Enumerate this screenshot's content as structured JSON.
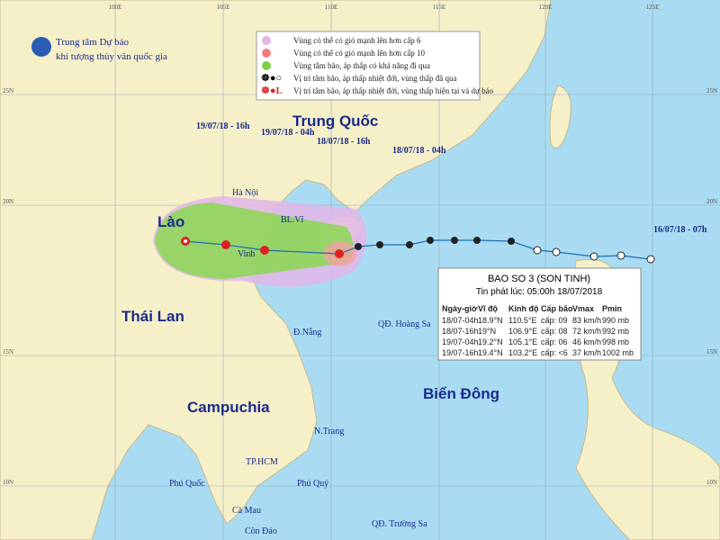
{
  "header": {
    "agency": [
      "Trung tâm Dự báo",
      "khí tượng thủy văn quốc gia"
    ]
  },
  "legend": [
    "Vùng có thể có gió mạnh lên hơn cấp 6",
    "Vùng có thể có gió mạnh lên hơn cấp 10",
    "Vùng tâm bão, áp thấp có khả năng đi qua",
    "Vị trí tâm bão, áp thấp nhiệt đới, vùng thấp đã qua",
    "Vị trí tâm bão, áp thấp nhiệt đới, vùng thấp hiện tại và dự báo"
  ],
  "graticule": {
    "longitudes": [
      "100E",
      "105E",
      "110E",
      "115E",
      "120E",
      "125E"
    ],
    "latitudes": [
      "25N",
      "20N",
      "15N",
      "10N"
    ]
  },
  "places": [
    "Trung Quốc",
    "Lào",
    "Thái Lan",
    "Campuchia",
    "Biển Đông",
    "Hà Nội",
    "Vinh",
    "BL.Vĩ",
    "Đ.Nẵng",
    "QĐ. Hoàng Sa",
    "N.Trang",
    "TP.HCM",
    "Phú Quốc",
    "Phú Quý",
    "Cà Mau",
    "Côn Đảo",
    "QĐ. Trường Sa"
  ],
  "track_labels": [
    "19/07/18 - 16h",
    "19/07/18 - 04h",
    "18/07/18 - 16h",
    "18/07/18 - 04h",
    "16/07/18 - 07h"
  ],
  "bulletin": {
    "title": "BAO SO 3 (SON TINH)",
    "issued": "Tin phát lúc: 05:00h 18/07/2018",
    "columns": [
      "Ngày-giờ",
      "Vĩ độ",
      "Kinh độ",
      "Cấp bão",
      "Vmax",
      "Pmin"
    ],
    "rows": [
      [
        "18/07-04h",
        "18.9°N",
        "110.5°E",
        "cấp: 09",
        "83 km/h",
        "990 mb"
      ],
      [
        "18/07-16h",
        "19°N",
        "106.9°E",
        "cấp: 08",
        "72 km/h",
        "992 mb"
      ],
      [
        "19/07-04h",
        "19.2°N",
        "105.1°E",
        "cấp: 06",
        "46 km/h",
        "998 mb"
      ],
      [
        "19/07-16h",
        "19.4°N",
        "103.2°E",
        "cấp: <6",
        "37 km/h",
        "1002 mb"
      ]
    ]
  }
}
